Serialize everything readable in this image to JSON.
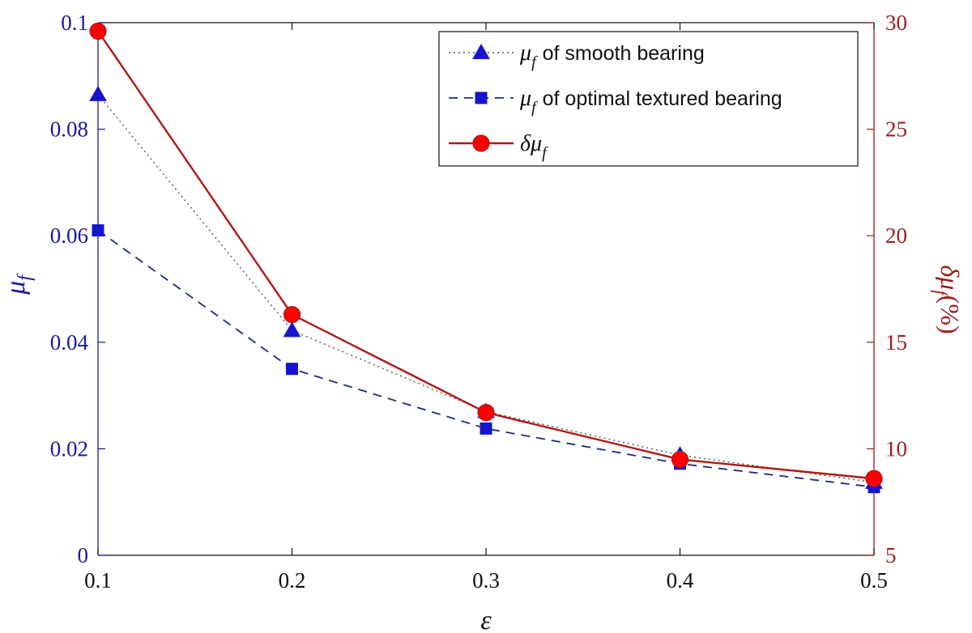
{
  "colors": {
    "left_axis": "#1a1aa0",
    "right_axis": "#9b1d1d",
    "smooth_series": "#1515d0",
    "textured_series": "#1a2a80",
    "textured_marker": "#1515d0",
    "delta_series": "#b01818",
    "delta_marker": "#ff0000",
    "smooth_line": "#555555"
  },
  "chart_data": {
    "type": "line",
    "x": [
      0.1,
      0.2,
      0.3,
      0.4,
      0.5
    ],
    "x_tick_labels": [
      "0.1",
      "0.2",
      "0.3",
      "0.4",
      "0.5"
    ],
    "xlim": [
      0.1,
      0.5
    ],
    "xlabel": "ε",
    "left_axis": {
      "ylim": [
        0,
        0.1
      ],
      "ticks": [
        0,
        0.02,
        0.04,
        0.06,
        0.08,
        0.1
      ],
      "tick_labels": [
        "0",
        "0.02",
        "0.04",
        "0.06",
        "0.08",
        "0.1"
      ],
      "label_main": "μ",
      "label_sub": "f"
    },
    "right_axis": {
      "ylim": [
        5,
        30
      ],
      "ticks": [
        5,
        10,
        15,
        20,
        25,
        30
      ],
      "tick_labels": [
        "5",
        "10",
        "15",
        "20",
        "25",
        "30"
      ],
      "label_main": "δμ",
      "label_sub": "f",
      "label_suffix": "(%)"
    },
    "series": [
      {
        "name": "μf of smooth bearing",
        "legend_symbol": "μ",
        "legend_sub": "f",
        "legend_text": "of smooth bearing",
        "axis": "left",
        "marker": "triangle",
        "line": "dotted",
        "values": [
          0.0865,
          0.0422,
          0.027,
          0.0188,
          0.0137
        ]
      },
      {
        "name": "μf of optimal textured bearing",
        "legend_symbol": "μ",
        "legend_sub": "f",
        "legend_text": "of optimal textured bearing",
        "axis": "left",
        "marker": "square",
        "line": "dashed",
        "values": [
          0.061,
          0.035,
          0.0238,
          0.0172,
          0.0128
        ]
      },
      {
        "name": "δμf",
        "legend_symbol": "δμ",
        "legend_sub": "f",
        "legend_text": "",
        "axis": "right",
        "marker": "circle",
        "line": "solid",
        "values": [
          29.6,
          16.3,
          11.7,
          9.5,
          8.6
        ]
      }
    ],
    "legend_position": "top-right",
    "grid": false
  }
}
